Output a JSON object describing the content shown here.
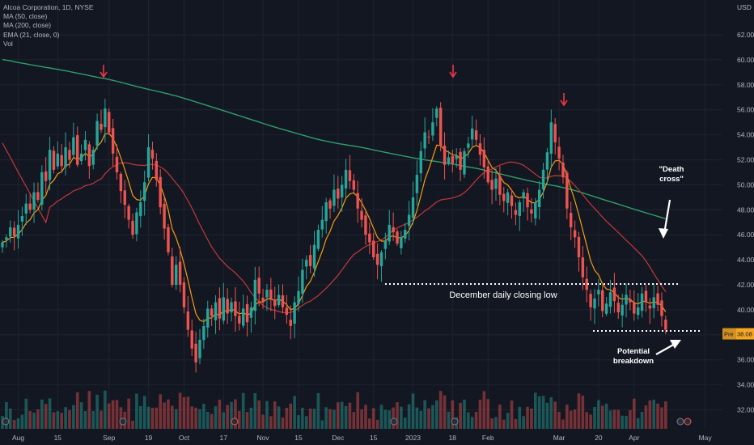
{
  "legend": {
    "title": "Alcoa Corporation, 1D, NYSE",
    "ma50": "MA (50, close)",
    "ma200": "MA (200, close)",
    "ema21": "EMA (21, close, 0)",
    "vol": "Vol"
  },
  "colors": {
    "background": "#131722",
    "grid": "#1f2330",
    "up": "#26a69a",
    "down": "#ef5350",
    "ma50": "#c2383a",
    "ma200": "#2f9e6a",
    "ema21": "#f39c12",
    "price_badge": "#f5a623",
    "arrow_red": "#f23645"
  },
  "chart_data": {
    "type": "candlestick",
    "title": "Alcoa Corporation, 1D, NYSE",
    "currency": "USD",
    "y_ticks": [
      "62.00",
      "60.00",
      "58.00",
      "56.00",
      "54.00",
      "52.00",
      "50.00",
      "48.00",
      "46.00",
      "44.00",
      "42.00",
      "40.00",
      "38.00",
      "36.00",
      "34.00",
      "32.00"
    ],
    "ylim": [
      31.5,
      63.3
    ],
    "x_ticks": [
      {
        "label": "Aug",
        "t": 4
      },
      {
        "label": "15",
        "t": 14
      },
      {
        "label": "Sep",
        "t": 27
      },
      {
        "label": "19",
        "t": 37
      },
      {
        "label": "Oct",
        "t": 46
      },
      {
        "label": "17",
        "t": 56
      },
      {
        "label": "Nov",
        "t": 66
      },
      {
        "label": "15",
        "t": 75
      },
      {
        "label": "Dec",
        "t": 85
      },
      {
        "label": "15",
        "t": 94
      },
      {
        "label": "2023",
        "t": 104
      },
      {
        "label": "18",
        "t": 114
      },
      {
        "label": "Feb",
        "t": 123
      },
      {
        "label": "Mar",
        "t": 141
      },
      {
        "label": "20",
        "t": 151
      },
      {
        "label": "Apr",
        "t": 160
      },
      {
        "label": "May",
        "t": 178
      }
    ],
    "closes": [
      45.4,
      45.8,
      46.6,
      45.9,
      46.8,
      47.5,
      48.5,
      48.0,
      49.4,
      48.8,
      51.0,
      50.3,
      52.8,
      51.2,
      52.5,
      51.5,
      53.0,
      52.0,
      53.8,
      51.6,
      52.5,
      53.6,
      51.5,
      52.8,
      55.1,
      54.4,
      56.1,
      54.2,
      52.5,
      51.0,
      49.5,
      48.4,
      47.2,
      46.0,
      47.8,
      48.6,
      50.2,
      53.0,
      52.1,
      50.4,
      48.2,
      46.5,
      44.6,
      42.0,
      43.6,
      42.0,
      40.2,
      38.4,
      36.9,
      35.8,
      37.6,
      38.7,
      40.1,
      39.5,
      40.6,
      39.3,
      41.0,
      39.7,
      40.6,
      39.5,
      38.9,
      40.1,
      39.0,
      40.2,
      42.4,
      41.3,
      40.6,
      41.6,
      40.9,
      40.3,
      41.2,
      40.2,
      39.6,
      38.7,
      40.6,
      41.5,
      43.2,
      44.0,
      43.5,
      45.2,
      46.4,
      47.2,
      48.6,
      48.1,
      49.6,
      48.9,
      50.0,
      51.2,
      50.3,
      49.6,
      48.1,
      47.2,
      46.0,
      45.4,
      44.2,
      43.6,
      44.6,
      45.5,
      46.8,
      46.2,
      45.3,
      45.8,
      46.4,
      47.6,
      49.0,
      50.8,
      52.7,
      54.2,
      53.8,
      55.0,
      56.1,
      53.1,
      51.6,
      52.2,
      51.7,
      52.3,
      51.2,
      52.7,
      53.3,
      54.5,
      53.6,
      52.4,
      51.4,
      50.2,
      49.6,
      50.5,
      49.2,
      48.7,
      49.4,
      48.3,
      47.6,
      48.6,
      49.4,
      48.2,
      47.7,
      48.6,
      49.6,
      51.2,
      52.6,
      55.0,
      53.4,
      52.1,
      50.6,
      48.1,
      46.6,
      45.8,
      44.2,
      42.6,
      41.6,
      40.2,
      40.9,
      41.6,
      39.9,
      40.5,
      41.4,
      40.7,
      39.8,
      40.4,
      41.2,
      40.6,
      39.7,
      40.2,
      41.3,
      40.6,
      40.1,
      41.0,
      40.4,
      39.5,
      38.4
    ]
  },
  "price_badge": {
    "label": "Pre",
    "value": "38.08"
  },
  "annotations": {
    "death_cross": "\"Death cross\"",
    "december_low": "December daily closing low",
    "potential_breakdown": "Potential breakdown"
  }
}
